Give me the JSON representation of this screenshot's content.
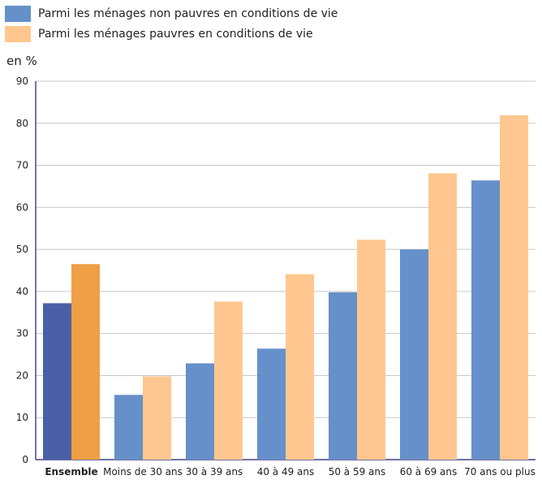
{
  "chart_data": {
    "type": "bar",
    "title": "",
    "unit_label": "en %",
    "categories": [
      "Ensemble",
      "Moins de 30 ans",
      "30 à 39 ans",
      "40 à 49 ans",
      "50 à 59 ans",
      "60 à 69 ans",
      "70 ans ou plus"
    ],
    "series": [
      {
        "name": "Parmi les ménages non pauvres en conditions de vie",
        "values": [
          37.2,
          15.4,
          22.9,
          26.4,
          39.8,
          50.0,
          66.4
        ],
        "color": "#6690c9",
        "highlight_color": "#4a5fa5"
      },
      {
        "name": "Parmi les ménages pauvres en conditions de vie",
        "values": [
          46.5,
          19.8,
          37.6,
          44.1,
          52.3,
          68.1,
          81.9
        ],
        "color": "#ffc78f",
        "highlight_color": "#ef9f45"
      }
    ],
    "highlight_category": "Ensemble",
    "ylim": [
      0,
      90
    ],
    "yticks": [
      0,
      10,
      20,
      30,
      40,
      50,
      60,
      70,
      80,
      90
    ],
    "grid": true,
    "legend_position": "top-left"
  }
}
